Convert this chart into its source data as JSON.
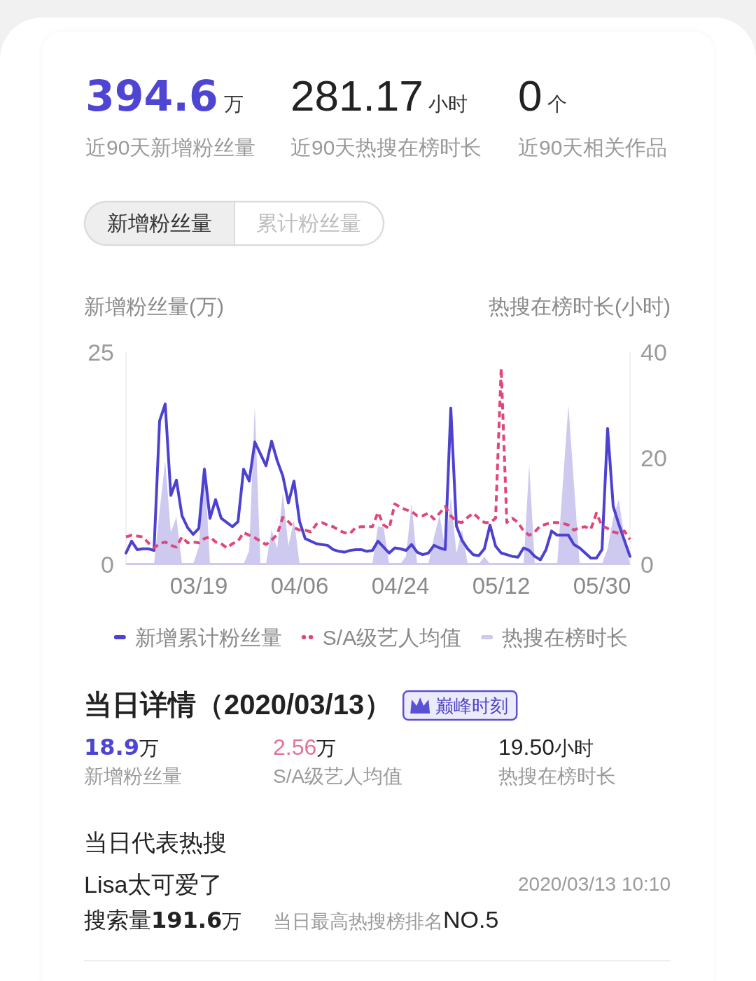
{
  "chart_data": [
    {
      "type": "other",
      "annotations": [
        "394.6万",
        "近90天新增粉丝量",
        "281.17小时",
        "近90天热搜在榜时长",
        "0个",
        "近90天相关作品",
        "新增粉丝量",
        "累计粉丝量"
      ]
    },
    {
      "type": "line",
      "ylabel": "新增粉丝量(万)",
      "y2label": "热搜在榜时长(小时)",
      "legend": "bottom",
      "categories": [
        null,
        null,
        null,
        null,
        null,
        null,
        null,
        null,
        null,
        null,
        null,
        null,
        null,
        "03/19",
        null,
        null,
        null,
        null,
        null,
        null,
        null,
        null,
        null,
        null,
        null,
        null,
        null,
        null,
        null,
        null,
        null,
        "04/06",
        null,
        null,
        null,
        null,
        null,
        null,
        null,
        null,
        null,
        null,
        null,
        null,
        null,
        null,
        null,
        null,
        null,
        "04/24",
        null,
        null,
        null,
        null,
        null,
        null,
        null,
        null,
        null,
        null,
        null,
        null,
        null,
        null,
        null,
        null,
        null,
        "05/12",
        null,
        null,
        null,
        null,
        null,
        null,
        null,
        null,
        null,
        null,
        null,
        null,
        null,
        null,
        null,
        null,
        null,
        "05/30",
        null,
        null,
        null,
        null,
        null
      ],
      "ylim": [
        0,
        25
      ],
      "yticks": [
        0,
        25
      ],
      "y2lim": [
        0,
        40
      ],
      "y2ticks": [
        0,
        20,
        40
      ],
      "series": [
        {
          "name": "新增累计粉丝量",
          "color": "#4d42cf",
          "line_style": "solid",
          "values": [
            1.3,
            2.7,
            1.7,
            1.8,
            1.8,
            1.6,
            16.9,
            18.9,
            8.1,
            9.9,
            5.7,
            4.3,
            3.5,
            4.2,
            11.2,
            5.4,
            7.6,
            5.4,
            4.9,
            4.4,
            5.0,
            11.2,
            9.8,
            14.4,
            13.0,
            11.6,
            14.5,
            12.2,
            10.4,
            7.2,
            9.8,
            5.0,
            3.0,
            2.7,
            2.4,
            2.3,
            2.2,
            1.7,
            1.5,
            1.4,
            1.6,
            1.7,
            1.7,
            1.5,
            1.6,
            2.7,
            2.0,
            1.3,
            1.9,
            1.8,
            1.6,
            2.3,
            1.4,
            1.1,
            1.3,
            2.2,
            1.9,
            1.7,
            18.4,
            4.5,
            2.8,
            1.8,
            1.1,
            1.0,
            1.8,
            4.6,
            2.1,
            1.3,
            1.1,
            0.9,
            0.8,
            1.9,
            1.6,
            0.9,
            0.5,
            1.7,
            3.9,
            3.4,
            3.4,
            3.4,
            2.3,
            1.9,
            1.3,
            0.7,
            0.7,
            1.7,
            16.0,
            6.8,
            4.7,
            2.8,
            0.9
          ]
        },
        {
          "name": "S/A级艺人均值",
          "color": "#e0467c",
          "line_style": "dashed",
          "values": [
            3.2,
            3.4,
            3.3,
            3.2,
            2.5,
            1.9,
            2.4,
            2.6,
            2.2,
            2.0,
            3.2,
            2.5,
            2.6,
            2.5,
            3.0,
            3.2,
            2.6,
            2.4,
            1.9,
            2.4,
            2.7,
            3.7,
            3.4,
            3.1,
            2.7,
            2.3,
            2.8,
            3.5,
            5.5,
            5.0,
            4.3,
            4.0,
            4.0,
            3.8,
            4.7,
            4.9,
            4.6,
            4.4,
            4.0,
            3.7,
            3.6,
            4.3,
            4.4,
            4.4,
            4.4,
            6.1,
            4.6,
            4.2,
            7.1,
            6.7,
            6.4,
            6.2,
            5.7,
            5.7,
            6.0,
            5.3,
            6.0,
            6.8,
            5.7,
            5.0,
            4.9,
            5.5,
            6.0,
            5.4,
            4.9,
            4.9,
            5.4,
            23.1,
            4.9,
            5.4,
            4.9,
            3.9,
            3.4,
            3.8,
            4.5,
            4.7,
            4.9,
            4.9,
            4.8,
            4.6,
            4.0,
            4.3,
            4.4,
            4.1,
            6.0,
            4.5,
            4.2,
            3.8,
            3.6,
            3.9,
            2.9
          ]
        },
        {
          "name": "热搜在榜时长",
          "type": "area",
          "axis": "y2",
          "color": "#cdc9ef",
          "values": [
            0,
            0,
            0,
            0,
            0,
            0,
            10,
            19.5,
            6,
            8.9,
            0,
            0,
            0,
            3.2,
            19.4,
            0,
            0,
            0,
            0,
            0,
            0,
            0,
            2.5,
            29.9,
            0,
            0,
            6.5,
            2.9,
            13.5,
            3.4,
            8.3,
            0,
            0,
            0,
            0,
            0,
            0,
            0,
            0,
            0,
            0,
            0,
            0,
            0,
            0,
            7.1,
            6.9,
            0,
            0,
            0,
            1.5,
            11.5,
            0,
            0,
            0,
            5.1,
            9.2,
            2.9,
            12.6,
            2.0,
            6.5,
            0,
            0,
            0,
            1.4,
            0,
            0,
            0,
            0,
            0,
            0,
            0,
            18.7,
            0,
            0,
            0,
            0,
            0,
            15,
            30,
            15,
            0,
            0,
            0,
            0,
            0,
            2.9,
            8.7,
            12.2,
            5,
            0
          ]
        }
      ]
    },
    {
      "type": "other",
      "title": "当日详情（2020/03/13）",
      "annotations": [
        "巅峰时刻",
        "18.9万",
        "新增粉丝量",
        "2.56万",
        "S/A级艺人均值",
        "19.50小时",
        "热搜在榜时长",
        "当日代表热搜",
        "Lisa太可爱了",
        "2020/03/13 10:10",
        "搜索量191.6万",
        "当日最高热搜榜排名NO.5"
      ]
    }
  ]
}
